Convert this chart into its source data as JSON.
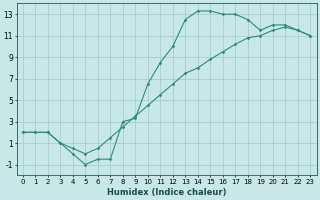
{
  "xlabel": "Humidex (Indice chaleur)",
  "line1_y": [
    2,
    2,
    2,
    1,
    0,
    -1,
    -0.5,
    -0.5,
    3,
    3.3,
    6.5,
    8.5,
    10,
    12.5,
    13.3,
    13.3,
    13,
    13,
    12.5,
    11.5,
    12,
    12,
    11.5,
    11
  ],
  "line2_y": [
    2,
    2,
    2,
    1,
    0.5,
    0,
    0.5,
    1.5,
    2.5,
    3.5,
    4.5,
    5.5,
    6.5,
    7.5,
    8.0,
    8.8,
    9.5,
    10.2,
    10.8,
    11.0,
    11.5,
    11.8,
    11.5,
    11
  ],
  "line_color": "#2e8b7a",
  "bg_color": "#c8e8e8",
  "grid_color": "#a8cccc",
  "xlim": [
    -0.5,
    23.5
  ],
  "ylim": [
    -2.0,
    14.0
  ],
  "yticks": [
    -1,
    1,
    3,
    5,
    7,
    9,
    11,
    13
  ],
  "xticks": [
    0,
    1,
    2,
    3,
    4,
    5,
    6,
    7,
    8,
    9,
    10,
    11,
    12,
    13,
    14,
    15,
    16,
    17,
    18,
    19,
    20,
    21,
    22,
    23
  ],
  "xlabel_fontsize": 6,
  "tick_fontsize": 5
}
